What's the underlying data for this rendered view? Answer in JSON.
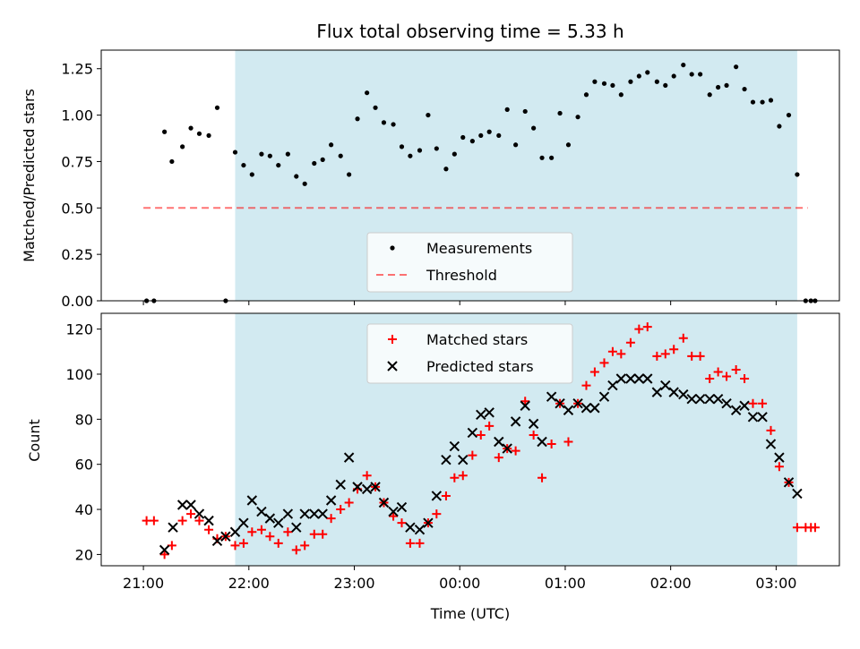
{
  "title": "Flux total observing time = 5.33 h",
  "colors": {
    "observing_band": "#add8e6",
    "measurement": "#000000",
    "threshold": "#ff0000",
    "matched": "#ff0000",
    "predicted": "#000000"
  },
  "chart_data": [
    {
      "type": "scatter",
      "panel": "top",
      "title": "Flux total observing time = 5.33 h",
      "xlabel": "",
      "ylabel": "Matched/Predicted stars",
      "xlim": [
        -0.4,
        6.6
      ],
      "ylim": [
        0,
        1.35
      ],
      "yticks": [
        0,
        0.25,
        0.5,
        0.75,
        1.0,
        1.25
      ],
      "ytick_labels": [
        "0.00",
        "0.25",
        "0.50",
        "0.75",
        "1.00",
        "1.25"
      ],
      "observing_window_hours_after_2100": [
        0.87,
        6.2
      ],
      "legend": {
        "placement": "lower-center",
        "entries": [
          "Measurements",
          "Threshold"
        ]
      },
      "threshold": {
        "name": "Threshold",
        "value": 0.5,
        "x_range": [
          0,
          6.3
        ]
      },
      "series": [
        {
          "name": "Measurements",
          "x": [
            0.03,
            0.1,
            0.2,
            0.27,
            0.37,
            0.45,
            0.53,
            0.62,
            0.7,
            0.78,
            0.87,
            0.95,
            1.03,
            1.12,
            1.2,
            1.28,
            1.37,
            1.45,
            1.53,
            1.62,
            1.7,
            1.78,
            1.87,
            1.95,
            2.03,
            2.12,
            2.2,
            2.28,
            2.37,
            2.45,
            2.53,
            2.62,
            2.7,
            2.78,
            2.87,
            2.95,
            3.03,
            3.12,
            3.2,
            3.28,
            3.37,
            3.45,
            3.53,
            3.62,
            3.7,
            3.78,
            3.87,
            3.95,
            4.03,
            4.12,
            4.2,
            4.28,
            4.37,
            4.45,
            4.53,
            4.62,
            4.7,
            4.78,
            4.87,
            4.95,
            5.03,
            5.12,
            5.2,
            5.28,
            5.37,
            5.45,
            5.53,
            5.62,
            5.7,
            5.78,
            5.87,
            5.95,
            6.03,
            6.12,
            6.2,
            6.28,
            6.33,
            6.37
          ],
          "y": [
            0,
            0,
            0.91,
            0.75,
            0.83,
            0.93,
            0.9,
            0.89,
            1.04,
            0,
            0.8,
            0.73,
            0.68,
            0.79,
            0.78,
            0.73,
            0.79,
            0.67,
            0.63,
            0.74,
            0.76,
            0.84,
            0.78,
            0.68,
            0.98,
            1.12,
            1.04,
            0.96,
            0.95,
            0.83,
            0.78,
            0.81,
            1.0,
            0.82,
            0.71,
            0.79,
            0.88,
            0.86,
            0.89,
            0.91,
            0.89,
            1.03,
            0.84,
            1.02,
            0.93,
            0.77,
            0.77,
            1.01,
            0.84,
            0.99,
            1.11,
            1.18,
            1.17,
            1.16,
            1.11,
            1.18,
            1.21,
            1.23,
            1.18,
            1.16,
            1.21,
            1.27,
            1.22,
            1.22,
            1.11,
            1.15,
            1.16,
            1.26,
            1.14,
            1.07,
            1.07,
            1.08,
            0.94,
            1.0,
            0.68,
            0,
            0,
            0
          ]
        }
      ]
    },
    {
      "type": "scatter",
      "panel": "bottom",
      "xlabel": "Time (UTC)",
      "ylabel": "Count",
      "xlim": [
        -0.4,
        6.6
      ],
      "ylim": [
        15,
        127
      ],
      "yticks": [
        20,
        40,
        60,
        80,
        100,
        120
      ],
      "ytick_labels": [
        "20",
        "40",
        "60",
        "80",
        "100",
        "120"
      ],
      "xticks": [
        0,
        1,
        2,
        3,
        4,
        5,
        6
      ],
      "xtick_labels": [
        "21:00",
        "22:00",
        "23:00",
        "00:00",
        "01:00",
        "02:00",
        "03:00"
      ],
      "observing_window_hours_after_2100": [
        0.87,
        6.2
      ],
      "legend": {
        "placement": "top-center",
        "entries": [
          "Matched stars",
          "Predicted stars"
        ]
      },
      "series": [
        {
          "name": "Matched stars",
          "marker": "+",
          "x": [
            0.03,
            0.1,
            0.2,
            0.27,
            0.37,
            0.45,
            0.53,
            0.62,
            0.7,
            0.78,
            0.87,
            0.95,
            1.03,
            1.12,
            1.2,
            1.28,
            1.37,
            1.45,
            1.53,
            1.62,
            1.7,
            1.78,
            1.87,
            1.95,
            2.03,
            2.12,
            2.2,
            2.28,
            2.37,
            2.45,
            2.53,
            2.62,
            2.7,
            2.78,
            2.87,
            2.95,
            3.03,
            3.12,
            3.2,
            3.28,
            3.37,
            3.45,
            3.53,
            3.62,
            3.7,
            3.78,
            3.87,
            3.95,
            4.03,
            4.12,
            4.2,
            4.28,
            4.37,
            4.45,
            4.53,
            4.62,
            4.7,
            4.78,
            4.87,
            4.95,
            5.03,
            5.12,
            5.2,
            5.28,
            5.37,
            5.45,
            5.53,
            5.62,
            5.7,
            5.78,
            5.87,
            5.95,
            6.03,
            6.12,
            6.2,
            6.28,
            6.33,
            6.37
          ],
          "y": [
            35,
            35,
            20,
            24,
            35,
            38,
            35,
            31,
            27,
            28,
            24,
            25,
            30,
            31,
            28,
            25,
            30,
            22,
            24,
            29,
            29,
            36,
            40,
            43,
            49,
            55,
            50,
            43,
            37,
            34,
            25,
            25,
            34,
            38,
            46,
            54,
            55,
            64,
            73,
            77,
            63,
            67,
            66,
            88,
            73,
            54,
            69,
            87,
            70,
            87,
            95,
            101,
            105,
            110,
            109,
            114,
            120,
            121,
            108,
            109,
            111,
            116,
            108,
            108,
            98,
            101,
            99,
            102,
            98,
            87,
            87,
            75,
            59,
            52,
            32,
            32,
            32,
            32
          ]
        },
        {
          "name": "Predicted stars",
          "marker": "x",
          "x": [
            0.2,
            0.28,
            0.37,
            0.45,
            0.53,
            0.62,
            0.7,
            0.78,
            0.87,
            0.95,
            1.03,
            1.12,
            1.2,
            1.28,
            1.37,
            1.45,
            1.53,
            1.62,
            1.7,
            1.78,
            1.87,
            1.95,
            2.03,
            2.12,
            2.2,
            2.28,
            2.37,
            2.45,
            2.53,
            2.62,
            2.7,
            2.78,
            2.87,
            2.95,
            3.03,
            3.12,
            3.2,
            3.28,
            3.37,
            3.45,
            3.53,
            3.62,
            3.7,
            3.78,
            3.87,
            3.95,
            4.03,
            4.12,
            4.2,
            4.28,
            4.37,
            4.45,
            4.53,
            4.62,
            4.7,
            4.78,
            4.87,
            4.95,
            5.03,
            5.12,
            5.2,
            5.28,
            5.37,
            5.45,
            5.53,
            5.62,
            5.7,
            5.78,
            5.87,
            5.95,
            6.03,
            6.12,
            6.2
          ],
          "y": [
            22,
            32,
            42,
            42,
            38,
            35,
            26,
            28,
            30,
            34,
            44,
            39,
            36,
            34,
            38,
            32,
            38,
            38,
            38,
            44,
            51,
            63,
            50,
            49,
            50,
            43,
            39,
            41,
            32,
            31,
            34,
            46,
            62,
            68,
            62,
            74,
            82,
            83,
            70,
            67,
            79,
            86,
            78,
            70,
            90,
            87,
            84,
            87,
            85,
            85,
            90,
            95,
            98,
            98,
            98,
            98,
            92,
            95,
            92,
            91,
            89,
            89,
            89,
            89,
            87,
            84,
            86,
            81,
            81,
            69,
            63,
            52,
            47
          ]
        }
      ]
    }
  ]
}
